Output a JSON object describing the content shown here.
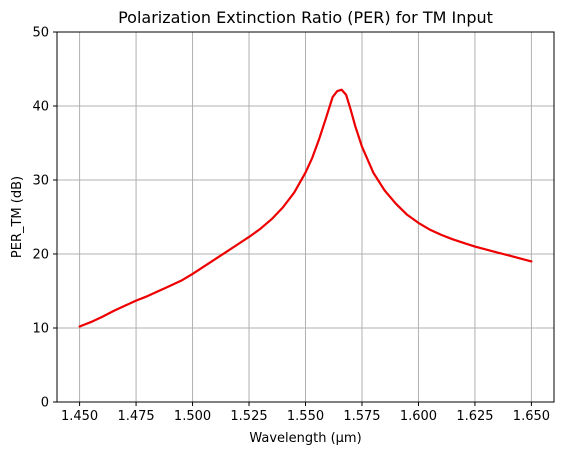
{
  "chart_data": {
    "type": "line",
    "title": "Polarization Extinction Ratio (PER) for TM Input",
    "xlabel": "Wavelength (µm)",
    "ylabel": "PER_TM (dB)",
    "xlim": [
      1.44,
      1.66
    ],
    "ylim": [
      0,
      50
    ],
    "x_ticks": [
      1.45,
      1.475,
      1.5,
      1.525,
      1.55,
      1.575,
      1.6,
      1.625,
      1.65
    ],
    "x_tick_labels": [
      "1.450",
      "1.475",
      "1.500",
      "1.525",
      "1.550",
      "1.575",
      "1.600",
      "1.625",
      "1.650"
    ],
    "y_ticks": [
      0,
      10,
      20,
      30,
      40,
      50
    ],
    "y_tick_labels": [
      "0",
      "10",
      "20",
      "30",
      "40",
      "50"
    ],
    "grid": true,
    "series": [
      {
        "color": "#ee0000",
        "x": [
          1.45,
          1.455,
          1.46,
          1.465,
          1.47,
          1.475,
          1.48,
          1.485,
          1.49,
          1.495,
          1.5,
          1.505,
          1.51,
          1.515,
          1.52,
          1.525,
          1.53,
          1.535,
          1.54,
          1.545,
          1.55,
          1.553,
          1.556,
          1.559,
          1.562,
          1.564,
          1.566,
          1.568,
          1.57,
          1.572,
          1.575,
          1.58,
          1.585,
          1.59,
          1.595,
          1.6,
          1.605,
          1.61,
          1.615,
          1.62,
          1.625,
          1.63,
          1.635,
          1.64,
          1.645,
          1.65
        ],
        "y": [
          10.2,
          10.8,
          11.5,
          12.3,
          13.0,
          13.7,
          14.3,
          15.0,
          15.7,
          16.4,
          17.3,
          18.3,
          19.3,
          20.3,
          21.3,
          22.3,
          23.4,
          24.7,
          26.3,
          28.3,
          31.0,
          33.0,
          35.5,
          38.3,
          41.2,
          42.0,
          42.2,
          41.5,
          39.5,
          37.3,
          34.5,
          31.0,
          28.6,
          26.8,
          25.3,
          24.2,
          23.3,
          22.6,
          22.0,
          21.5,
          21.0,
          20.6,
          20.2,
          19.8,
          19.4,
          19.0
        ]
      }
    ]
  }
}
